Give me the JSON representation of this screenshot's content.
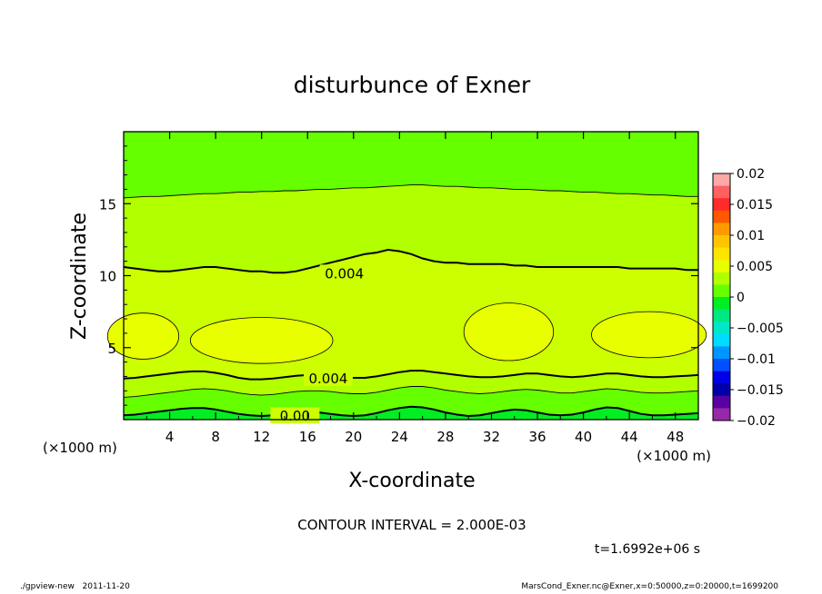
{
  "chart_data": {
    "type": "heatmap",
    "title": "disturbunce of Exner",
    "xlabel": "X-coordinate",
    "ylabel": "Z-coordinate",
    "x_unit": "(×1000 m)",
    "y_unit": "(×1000 m)",
    "xlim": [
      0,
      50
    ],
    "ylim": [
      0,
      20
    ],
    "x_ticks": [
      4,
      8,
      12,
      16,
      20,
      24,
      28,
      32,
      36,
      40,
      44,
      48
    ],
    "y_ticks": [
      5,
      10,
      15
    ],
    "colorbar": {
      "levels": [
        0.02,
        0.015,
        0.01,
        0.005,
        0,
        -0.005,
        -0.01,
        -0.015,
        -0.02
      ],
      "labels": [
        "0.02",
        "0.015",
        "0.01",
        "0.005",
        "0",
        "−0.005",
        "−0.01",
        "−0.015",
        "−0.02"
      ],
      "colors": [
        "#ffa8a8",
        "#ff6060",
        "#ff2a2a",
        "#ff5800",
        "#ff9a00",
        "#ffc400",
        "#ffe400",
        "#e8ff00",
        "#b2ff00",
        "#66ff00",
        "#00ee22",
        "#00e882",
        "#00e8c8",
        "#00dcff",
        "#0096ff",
        "#0050ff",
        "#0000e6",
        "#0000aa",
        "#5a00a0",
        "#9628aa"
      ]
    },
    "contour_interval": "CONTOUR INTERVAL = 2.000E-03",
    "contour_labels": [
      {
        "text": "0.004",
        "x": 19.2,
        "z": 10.2
      },
      {
        "text": "0.004",
        "x": 17.8,
        "z": 2.9
      },
      {
        "text": "0.00",
        "x": 14.9,
        "z": 0.3
      }
    ],
    "contours": [
      {
        "level": 0.004,
        "z": [
          10.6,
          10.5,
          10.4,
          10.3,
          10.3,
          10.4,
          10.5,
          10.6,
          10.6,
          10.5,
          10.4,
          10.3,
          10.3,
          10.2,
          10.2,
          10.3,
          10.5,
          10.7,
          10.9,
          11.1,
          11.3,
          11.5,
          11.6,
          11.8,
          11.7,
          11.5,
          11.2,
          11.0,
          10.9,
          10.9,
          10.8,
          10.8,
          10.8,
          10.8,
          10.7,
          10.7,
          10.6,
          10.6,
          10.6,
          10.6,
          10.6,
          10.6,
          10.6,
          10.6,
          10.5,
          10.5,
          10.5,
          10.5,
          10.5,
          10.4,
          10.4
        ]
      },
      {
        "level": 0.004,
        "z": [
          2.85,
          2.9,
          3.0,
          3.1,
          3.2,
          3.3,
          3.35,
          3.35,
          3.25,
          3.1,
          2.9,
          2.8,
          2.8,
          2.85,
          2.95,
          3.05,
          3.1,
          3.1,
          3.05,
          2.95,
          2.9,
          2.9,
          3.0,
          3.15,
          3.3,
          3.4,
          3.4,
          3.3,
          3.2,
          3.1,
          3.0,
          2.95,
          2.95,
          3.0,
          3.1,
          3.2,
          3.2,
          3.1,
          3.0,
          2.95,
          3.0,
          3.1,
          3.2,
          3.2,
          3.1,
          3.0,
          2.95,
          2.95,
          3.0,
          3.05,
          3.1
        ]
      },
      {
        "level": 0.002,
        "z": [
          1.55,
          1.6,
          1.7,
          1.8,
          1.9,
          2.0,
          2.1,
          2.15,
          2.1,
          2.0,
          1.85,
          1.75,
          1.7,
          1.75,
          1.85,
          1.95,
          2.0,
          2.0,
          1.95,
          1.85,
          1.8,
          1.8,
          1.9,
          2.05,
          2.2,
          2.3,
          2.3,
          2.2,
          2.05,
          1.95,
          1.85,
          1.8,
          1.85,
          1.95,
          2.05,
          2.1,
          2.05,
          1.95,
          1.85,
          1.85,
          1.95,
          2.05,
          2.15,
          2.1,
          2.0,
          1.9,
          1.85,
          1.85,
          1.9,
          1.95,
          2.0
        ]
      },
      {
        "level": 0.0,
        "z": [
          0.3,
          0.35,
          0.45,
          0.55,
          0.65,
          0.75,
          0.8,
          0.8,
          0.7,
          0.55,
          0.4,
          0.3,
          0.25,
          0.3,
          0.4,
          0.5,
          0.55,
          0.5,
          0.4,
          0.3,
          0.25,
          0.3,
          0.45,
          0.65,
          0.8,
          0.9,
          0.85,
          0.7,
          0.5,
          0.35,
          0.25,
          0.3,
          0.45,
          0.6,
          0.7,
          0.65,
          0.5,
          0.35,
          0.3,
          0.35,
          0.5,
          0.7,
          0.85,
          0.8,
          0.6,
          0.4,
          0.3,
          0.3,
          0.35,
          0.4,
          0.45
        ]
      },
      {
        "level": 0.002,
        "z": [
          15.4,
          15.45,
          15.5,
          15.5,
          15.55,
          15.6,
          15.65,
          15.7,
          15.7,
          15.75,
          15.8,
          15.8,
          15.85,
          15.85,
          15.9,
          15.9,
          15.95,
          16.0,
          16.0,
          16.05,
          16.1,
          16.1,
          16.15,
          16.2,
          16.25,
          16.3,
          16.3,
          16.25,
          16.2,
          16.2,
          16.15,
          16.1,
          16.1,
          16.05,
          16.0,
          16.0,
          15.95,
          15.9,
          15.9,
          15.85,
          15.8,
          15.8,
          15.75,
          15.7,
          15.7,
          15.65,
          15.6,
          15.6,
          15.55,
          15.5,
          15.5
        ]
      }
    ],
    "high_regions": [
      {
        "level": 0.006,
        "cx": 1.7,
        "cz": 5.8,
        "rx": 3.1,
        "rz": 1.6
      },
      {
        "level": 0.006,
        "cx": 12.0,
        "cz": 5.5,
        "rx": 6.2,
        "rz": 1.6
      },
      {
        "level": 0.006,
        "cx": 33.5,
        "cz": 6.1,
        "rx": 3.9,
        "rz": 2.0
      },
      {
        "level": 0.006,
        "cx": 45.7,
        "cz": 5.9,
        "rx": 5.0,
        "rz": 1.6
      }
    ]
  },
  "time_label": "t=1.6992e+06 s",
  "footer": {
    "left_program": "./gpview-new",
    "left_date": "2011-11-20",
    "right_source": "MarsCond_Exner.nc@Exner,x=0:50000,z=0:20000,t=1699200"
  }
}
